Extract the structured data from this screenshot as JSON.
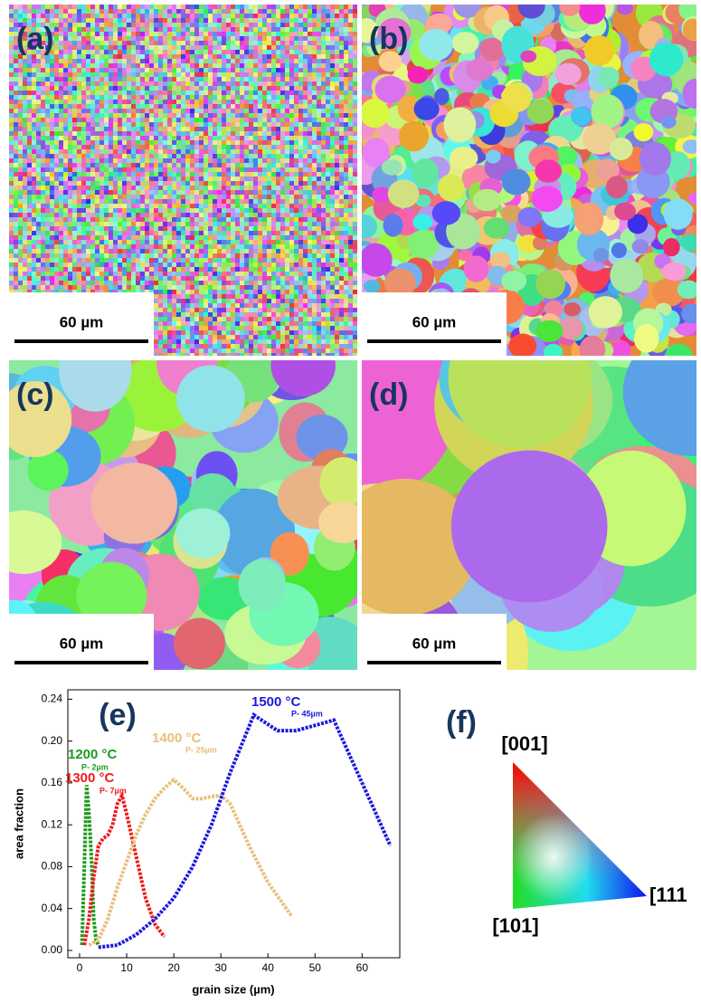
{
  "panels": [
    {
      "label": "(a)",
      "scale_bar": "60 µm"
    },
    {
      "label": "(b)",
      "scale_bar": "60 µm"
    },
    {
      "label": "(c)",
      "scale_bar": "60 µm"
    },
    {
      "label": "(d)",
      "scale_bar": "60 µm"
    }
  ],
  "chart_data": {
    "type": "line",
    "panel_label": "(e)",
    "x_label": "grain size (µm)",
    "y_label": "area fraction",
    "xlim": [
      -2.5,
      68
    ],
    "xticks": [
      0,
      10,
      20,
      30,
      40,
      50,
      60
    ],
    "ylim": [
      -0.007,
      0.249
    ],
    "yticks": [
      {
        "value": 0,
        "label": "0.00"
      },
      {
        "value": 0.04,
        "label": "0.04"
      },
      {
        "value": 0.08,
        "label": "0.08"
      },
      {
        "value": 0.12,
        "label": "0.12"
      },
      {
        "value": 0.16,
        "label": "0.16"
      },
      {
        "value": 0.2,
        "label": "0.20"
      },
      {
        "value": 0.24,
        "label": "0.24"
      }
    ],
    "series": [
      {
        "name": "1200 °C",
        "peak_label": "P- 2µm",
        "color": "#1e9a1e",
        "x": [
          0.5,
          1,
          1.5,
          2,
          2.5,
          3,
          3.5,
          4
        ],
        "values": [
          0.005,
          0.08,
          0.158,
          0.13,
          0.09,
          0.03,
          0.01,
          0.005
        ]
      },
      {
        "name": "1300 °C",
        "peak_label": "P- 7µm",
        "color": "#ee1c1c",
        "x": [
          1,
          2,
          3,
          4,
          5,
          6,
          7,
          8,
          9,
          10,
          12,
          14,
          16,
          18
        ],
        "values": [
          0.005,
          0.03,
          0.07,
          0.1,
          0.107,
          0.11,
          0.12,
          0.14,
          0.148,
          0.13,
          0.09,
          0.05,
          0.025,
          0.013
        ]
      },
      {
        "name": "1400 °C",
        "peak_label": "P- 25µm",
        "color": "#e8c07a",
        "x": [
          2,
          4,
          6,
          8,
          10,
          12,
          14,
          16,
          18,
          20,
          22,
          24,
          26,
          28,
          30,
          32,
          36,
          40,
          45
        ],
        "values": [
          0.005,
          0.01,
          0.03,
          0.06,
          0.085,
          0.11,
          0.13,
          0.145,
          0.155,
          0.163,
          0.155,
          0.145,
          0.145,
          0.147,
          0.148,
          0.14,
          0.1,
          0.065,
          0.033
        ]
      },
      {
        "name": "1500 °C",
        "peak_label": "P- 45µm",
        "color": "#1a1adf",
        "x": [
          4,
          8,
          12,
          16,
          20,
          24,
          28,
          32,
          37,
          42,
          46,
          50,
          54,
          58,
          62,
          66
        ],
        "values": [
          0.003,
          0.005,
          0.015,
          0.03,
          0.05,
          0.08,
          0.12,
          0.17,
          0.225,
          0.21,
          0.21,
          0.215,
          0.22,
          0.18,
          0.14,
          0.1
        ]
      }
    ]
  },
  "orientation_key": {
    "label": "(f)",
    "corners": [
      "[001]",
      "[101]",
      "[111"
    ]
  }
}
